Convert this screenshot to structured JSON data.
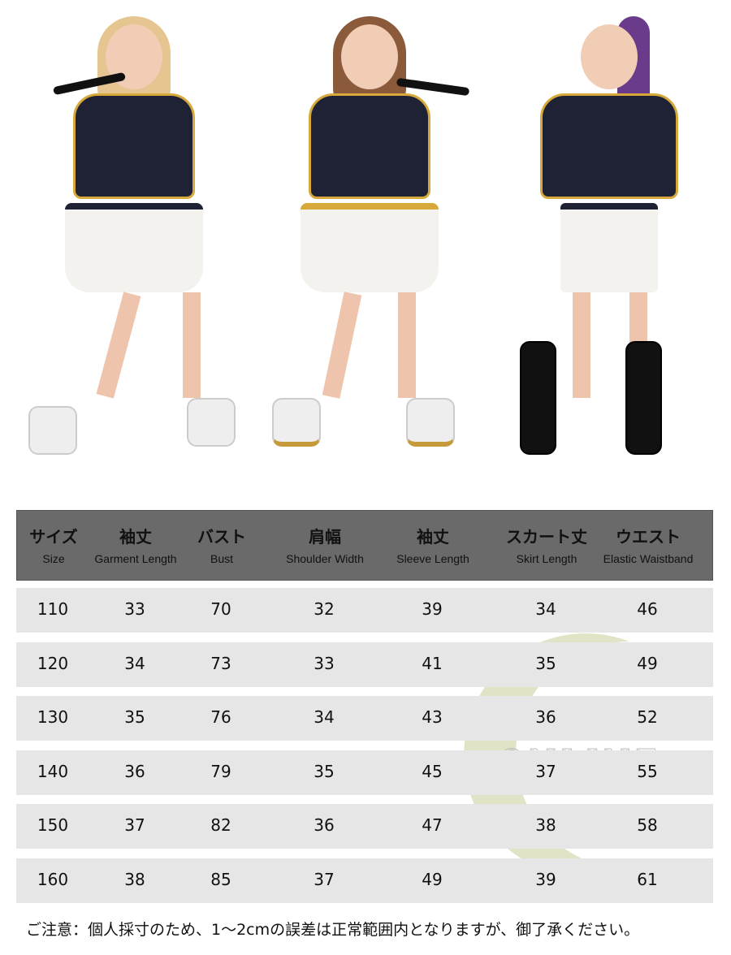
{
  "table": {
    "headers": [
      {
        "jp": "サイズ",
        "en": "Size"
      },
      {
        "jp": "袖丈",
        "en": "Garment Length"
      },
      {
        "jp": "バスト",
        "en": "Bust"
      },
      {
        "jp": "肩幅",
        "en": "Shoulder Width"
      },
      {
        "jp": "袖丈",
        "en": "Sleeve Length"
      },
      {
        "jp": "スカート丈",
        "en": "Skirt Length"
      },
      {
        "jp": "ウエスト",
        "en": "Elastic Waistband"
      }
    ],
    "rows": [
      [
        "110",
        "33",
        "70",
        "32",
        "39",
        "34",
        "46"
      ],
      [
        "120",
        "34",
        "73",
        "33",
        "41",
        "35",
        "49"
      ],
      [
        "130",
        "35",
        "76",
        "34",
        "43",
        "36",
        "52"
      ],
      [
        "140",
        "36",
        "79",
        "35",
        "45",
        "37",
        "55"
      ],
      [
        "150",
        "37",
        "82",
        "36",
        "47",
        "38",
        "58"
      ],
      [
        "160",
        "38",
        "85",
        "37",
        "49",
        "39",
        "61"
      ]
    ],
    "header_color": "#6a6a6a",
    "row_color": "#e6e6e6"
  },
  "note": "ご注意：個人採寸のため、1〜2cmの誤差は正常範囲内となりますが、御了承ください。",
  "watermark": {
    "kana": "シーヤンヤンオンライン",
    "word": "ONLINE",
    "romaji": "shiiyanyanonnrain"
  }
}
